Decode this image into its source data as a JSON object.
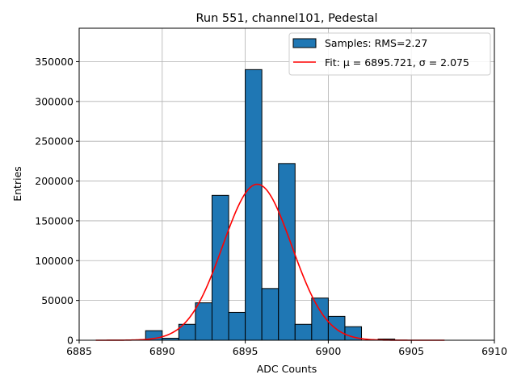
{
  "chart_data": {
    "type": "bar",
    "title": "Run 551, channel101, Pedestal",
    "xlabel": "ADC Counts",
    "ylabel": "Entries",
    "xlim": [
      6885,
      6910
    ],
    "ylim": [
      0,
      392000
    ],
    "x_ticks": [
      "6885",
      "6890",
      "6895",
      "6900",
      "6905",
      "6910"
    ],
    "x_tick_values": [
      6885,
      6890,
      6895,
      6900,
      6905,
      6910
    ],
    "y_ticks": [
      "0",
      "50000",
      "100000",
      "150000",
      "200000",
      "250000",
      "300000",
      "350000"
    ],
    "y_tick_values": [
      0,
      50000,
      100000,
      150000,
      200000,
      250000,
      300000,
      350000
    ],
    "grid": true,
    "legend_position": "top-right",
    "bin_width": 1,
    "bins": [
      {
        "x": 6889,
        "value": 12000
      },
      {
        "x": 6890,
        "value": 2500
      },
      {
        "x": 6891,
        "value": 20000
      },
      {
        "x": 6892,
        "value": 47000
      },
      {
        "x": 6893,
        "value": 182000
      },
      {
        "x": 6894,
        "value": 35000
      },
      {
        "x": 6895,
        "value": 340000
      },
      {
        "x": 6896,
        "value": 65000
      },
      {
        "x": 6897,
        "value": 222000
      },
      {
        "x": 6898,
        "value": 20000
      },
      {
        "x": 6899,
        "value": 53000
      },
      {
        "x": 6900,
        "value": 30000
      },
      {
        "x": 6901,
        "value": 17000
      },
      {
        "x": 6903,
        "value": 1500
      }
    ],
    "fit": {
      "mu": 6895.721,
      "sigma": 2.075,
      "amplitude": 196000,
      "x_range": [
        6886,
        6907
      ]
    },
    "series": [
      {
        "name": "Samples: RMS=2.27",
        "color": "#1f77b4",
        "edge_color": "#000000"
      },
      {
        "name": "Fit: μ = 6895.721, σ = 2.075",
        "color": "#ff0000"
      }
    ]
  }
}
